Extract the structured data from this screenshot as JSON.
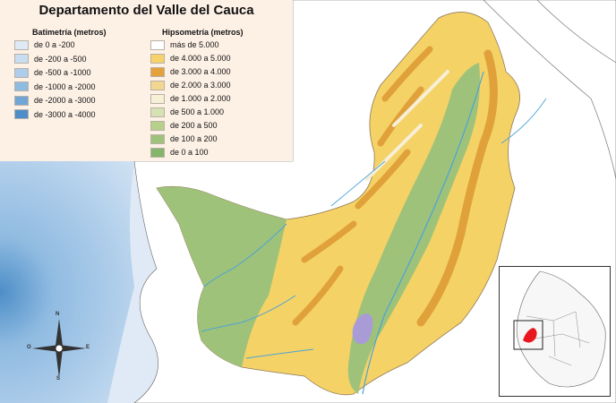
{
  "title": "Departamento del Valle del Cauca",
  "legend": {
    "bathymetry": {
      "title": "Batimetría (metros)",
      "items": [
        {
          "label": "de 0 a -200",
          "color": "#dfeaf6"
        },
        {
          "label": "de -200 a -500",
          "color": "#c8ddf1"
        },
        {
          "label": "de -500 a -1000",
          "color": "#aecdea"
        },
        {
          "label": "de -1000 a -2000",
          "color": "#90bbe1"
        },
        {
          "label": "de -2000 a -3000",
          "color": "#70a6d6"
        },
        {
          "label": "de -3000 a -4000",
          "color": "#4d8ec8"
        }
      ]
    },
    "hypsometry": {
      "title": "Hipsometría (metros)",
      "items": [
        {
          "label": "más de 5.000",
          "color": "#ffffff"
        },
        {
          "label": "de 4.000 a 5.000",
          "color": "#f5d36a"
        },
        {
          "label": "de 3.000 a 4.000",
          "color": "#e3a23c"
        },
        {
          "label": "de 2.000 a 3.000",
          "color": "#f2d88f"
        },
        {
          "label": "de 1.000 a 2.000",
          "color": "#f7efd6"
        },
        {
          "label": "de 500 a 1.000",
          "color": "#d6e2b3"
        },
        {
          "label": "de 200 a 500",
          "color": "#b6cf8a"
        },
        {
          "label": "de 100 a 200",
          "color": "#9fc27a"
        },
        {
          "label": "de 0 a 100",
          "color": "#84b56b"
        }
      ]
    }
  },
  "compass": {
    "n": "N",
    "s": "S",
    "e": "E",
    "o": "O"
  },
  "colors": {
    "sea": "#c6dcf0",
    "lake": "#a99bd6",
    "river": "#4ba3d6",
    "highlight": "#e8161e"
  }
}
